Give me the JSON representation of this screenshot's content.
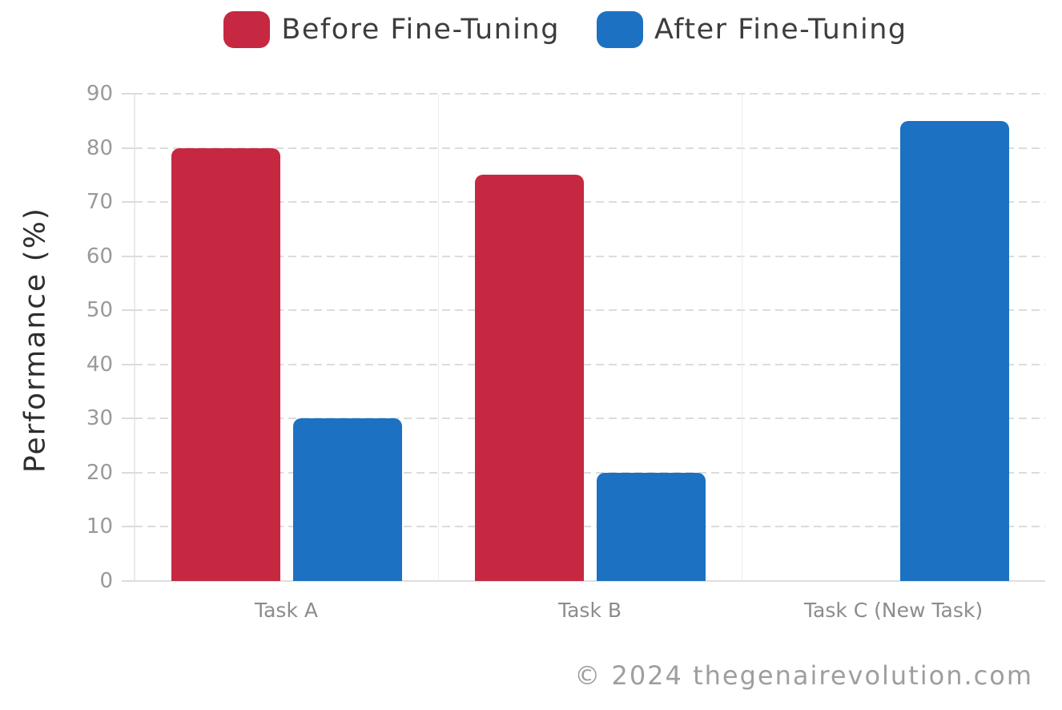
{
  "chart_data": {
    "type": "bar",
    "title": "",
    "xlabel": "",
    "ylabel": "Performance (%)",
    "categories": [
      "Task A",
      "Task B",
      "Task C (New Task)"
    ],
    "series": [
      {
        "name": "Before Fine-Tuning",
        "color": "#c62841",
        "values": [
          80,
          75,
          null
        ]
      },
      {
        "name": "After Fine-Tuning",
        "color": "#1c71c3",
        "values": [
          30,
          20,
          85
        ]
      }
    ],
    "ylim": [
      0,
      90
    ],
    "ytick_step": 10,
    "yticks": [
      0,
      10,
      20,
      30,
      40,
      50,
      60,
      70,
      80,
      90
    ],
    "grid": "horizontal-dashed",
    "legend_position": "top"
  },
  "footer": {
    "copyright": "© 2024 thegenairevolution.com"
  },
  "colors": {
    "background": "#ffffff",
    "grid": "#dcdcdc",
    "axis": "#dedede",
    "tick_label": "#999999",
    "category_label": "#8c8c8c",
    "legend_text": "#3d3d3d",
    "ylabel_text": "#2e2e2e",
    "footer_text": "#9e9e9e"
  }
}
